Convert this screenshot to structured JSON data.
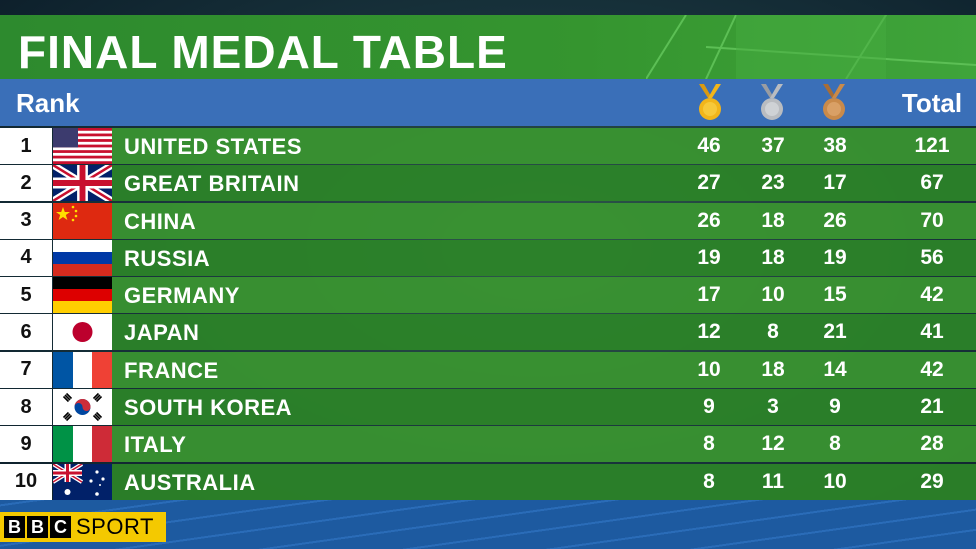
{
  "title": "FINAL MEDAL TABLE",
  "header": {
    "rank_label": "Rank",
    "total_label": "Total",
    "medal_icons": [
      "gold-medal-icon",
      "silver-medal-icon",
      "bronze-medal-icon"
    ]
  },
  "colors": {
    "title_green": "#35952f",
    "header_blue": "#3a6fb8",
    "row_green": "#3a9630",
    "gold": "#f2b51a",
    "silver": "#b9bcc0",
    "bronze": "#c98a4a",
    "logo_yellow": "#f4c900"
  },
  "rows": [
    {
      "rank": "1",
      "country": "UNITED STATES",
      "flag": "usa-flag",
      "gold": "46",
      "silver": "37",
      "bronze": "38",
      "total": "121"
    },
    {
      "rank": "2",
      "country": "GREAT BRITAIN",
      "flag": "uk-flag",
      "gold": "27",
      "silver": "23",
      "bronze": "17",
      "total": "67"
    },
    {
      "rank": "3",
      "country": "CHINA",
      "flag": "china-flag",
      "gold": "26",
      "silver": "18",
      "bronze": "26",
      "total": "70"
    },
    {
      "rank": "4",
      "country": "RUSSIA",
      "flag": "russia-flag",
      "gold": "19",
      "silver": "18",
      "bronze": "19",
      "total": "56"
    },
    {
      "rank": "5",
      "country": "GERMANY",
      "flag": "germany-flag",
      "gold": "17",
      "silver": "10",
      "bronze": "15",
      "total": "42"
    },
    {
      "rank": "6",
      "country": "JAPAN",
      "flag": "japan-flag",
      "gold": "12",
      "silver": "8",
      "bronze": "21",
      "total": "41"
    },
    {
      "rank": "7",
      "country": "FRANCE",
      "flag": "france-flag",
      "gold": "10",
      "silver": "18",
      "bronze": "14",
      "total": "42"
    },
    {
      "rank": "8",
      "country": "SOUTH KOREA",
      "flag": "south-korea-flag",
      "gold": "9",
      "silver": "3",
      "bronze": "9",
      "total": "21"
    },
    {
      "rank": "9",
      "country": "ITALY",
      "flag": "italy-flag",
      "gold": "8",
      "silver": "12",
      "bronze": "8",
      "total": "28"
    },
    {
      "rank": "10",
      "country": "AUSTRALIA",
      "flag": "australia-flag",
      "gold": "8",
      "silver": "11",
      "bronze": "10",
      "total": "29"
    }
  ],
  "logo": {
    "letters": [
      "B",
      "B",
      "C"
    ],
    "sport": "SPORT"
  }
}
